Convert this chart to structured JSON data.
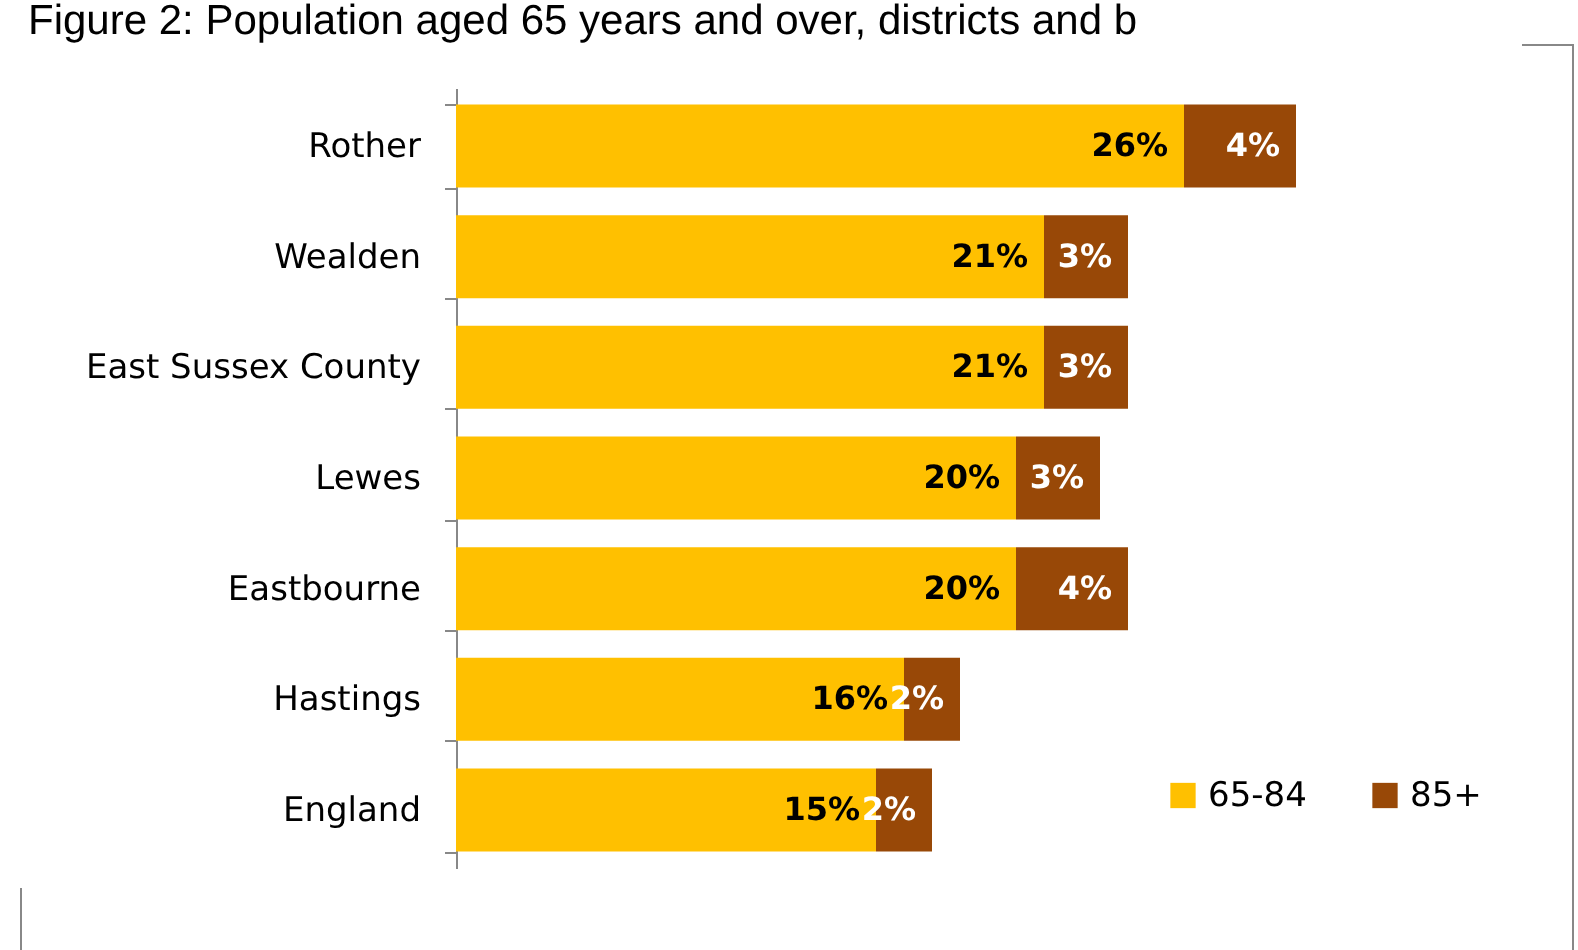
{
  "chart_data": {
    "type": "bar",
    "orientation": "horizontal",
    "stacked": true,
    "title": "Figure 2: Population aged 65 years and over, districts and b",
    "categories": [
      "Rother",
      "Wealden",
      "East Sussex County",
      "Lewes",
      "Eastbourne",
      "Hastings",
      "England"
    ],
    "series": [
      {
        "name": "65-84",
        "color": "#ffc000",
        "values": [
          26,
          21,
          21,
          20,
          20,
          16,
          15
        ],
        "value_labels": [
          "26%",
          "21%",
          "21%",
          "20%",
          "20%",
          "16%",
          "15%"
        ]
      },
      {
        "name": "85+",
        "color": "#984807",
        "values": [
          4,
          3,
          3,
          3,
          4,
          2,
          2
        ],
        "value_labels": [
          "4%",
          "3%",
          "3%",
          "3%",
          "4%",
          "2%",
          "2%"
        ]
      }
    ],
    "legend": "bottom right"
  }
}
